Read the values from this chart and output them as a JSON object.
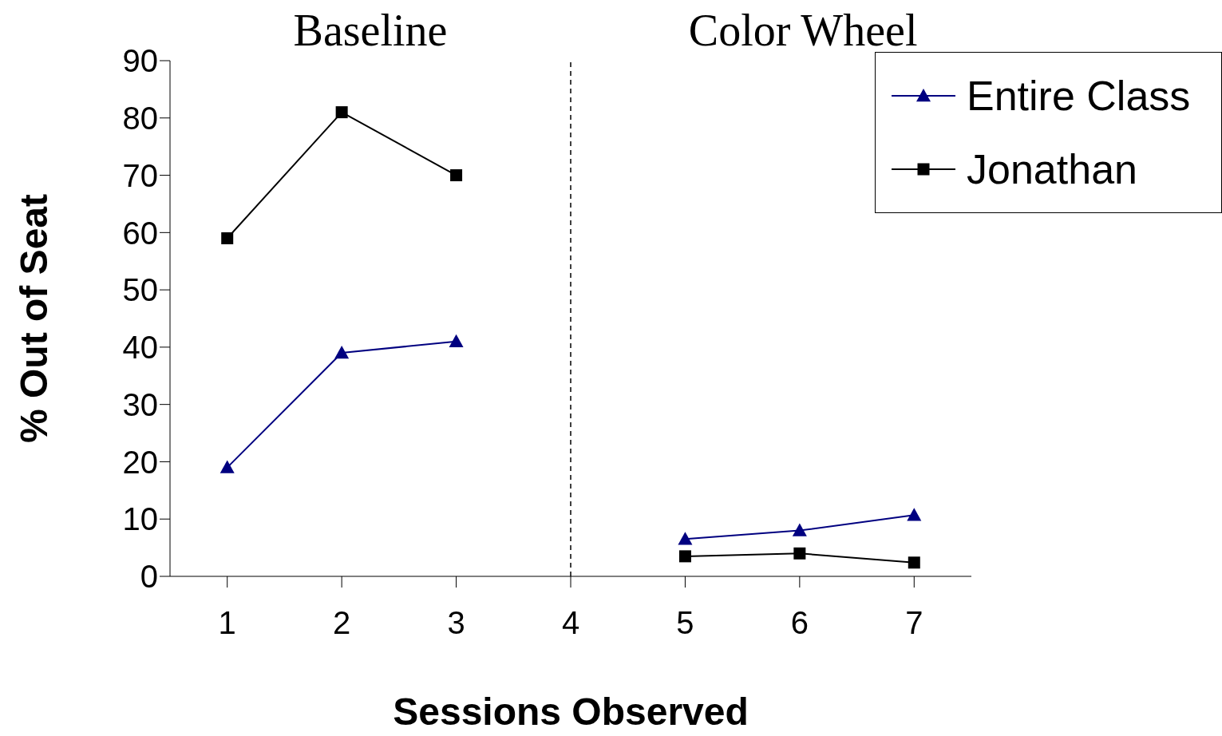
{
  "chart_data": {
    "type": "line",
    "xlabel": "Sessions Observed",
    "ylabel": "% Out of Seat",
    "categories": [
      "1",
      "2",
      "3",
      "4",
      "5",
      "6",
      "7"
    ],
    "ylim": [
      0,
      90
    ],
    "yticks": [
      0,
      10,
      20,
      30,
      40,
      50,
      60,
      70,
      80,
      90
    ],
    "grid": false,
    "legend": "top right",
    "series": [
      {
        "name": "Entire Class",
        "color": "#000080",
        "marker": "triangle",
        "values": [
          19,
          39,
          41,
          null,
          6.5,
          8,
          10.7
        ]
      },
      {
        "name": "Jonathan",
        "color": "#000000",
        "marker": "square",
        "values": [
          59,
          81,
          70,
          null,
          3.5,
          4,
          2.4
        ]
      }
    ],
    "ref_lines": [
      {
        "axis": "x",
        "value": "4",
        "line_style": "dashed",
        "color": "#000000"
      }
    ],
    "annotations": [
      "Baseline",
      "Color Wheel"
    ]
  }
}
